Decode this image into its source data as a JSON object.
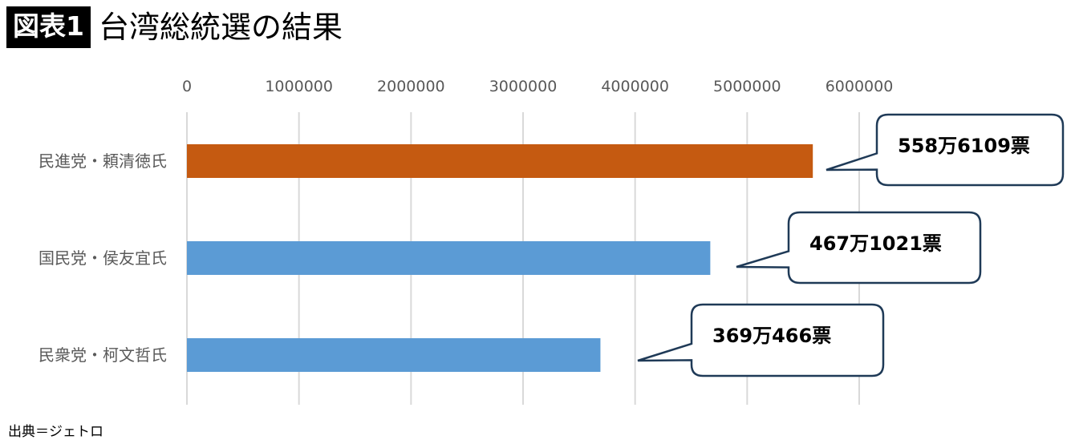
{
  "header": {
    "badge": "図表1",
    "title": "台湾総統選の結果"
  },
  "source": "出典＝ジェトロ",
  "chart_data": {
    "type": "bar",
    "orientation": "horizontal",
    "categories": [
      "民進党・頼清徳氏",
      "国民党・侯友宜氏",
      "民衆党・柯文哲氏"
    ],
    "values": [
      5586109,
      4671021,
      3690466
    ],
    "data_labels": [
      "558万6109票",
      "467万1021票",
      "369万466票"
    ],
    "colors": [
      "#C55A11",
      "#5B9BD5",
      "#5B9BD5"
    ],
    "xlim": [
      0,
      6000000
    ],
    "xticks": [
      "0",
      "1000000",
      "2000000",
      "3000000",
      "4000000",
      "5000000",
      "6000000"
    ],
    "xaxis_position": "top",
    "grid": true,
    "title": "台湾総統選の結果"
  }
}
